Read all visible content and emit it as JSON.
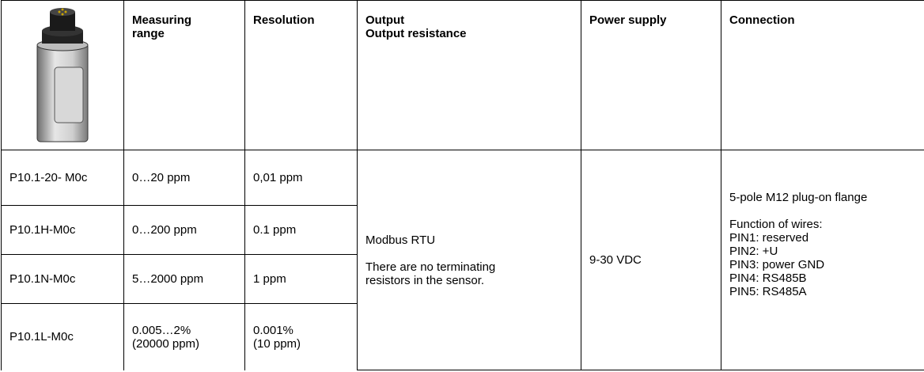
{
  "header": {
    "measuring_range": [
      "Measuring",
      "range"
    ],
    "resolution": "Resolution",
    "output": [
      "Output",
      "Output resistance"
    ],
    "power_supply": "Power supply",
    "connection": "Connection"
  },
  "rows": [
    {
      "model": "P10.1-20- M0c",
      "range": [
        "0…20 ppm"
      ],
      "resolution": [
        "0,01 ppm"
      ]
    },
    {
      "model": "P10.1H-M0c",
      "range": [
        "0…200 ppm"
      ],
      "resolution": [
        "0.1 ppm"
      ]
    },
    {
      "model": "P10.1N-M0c",
      "range": [
        "5…2000 ppm"
      ],
      "resolution": [
        "1 ppm"
      ]
    },
    {
      "model": "P10.1L-M0c",
      "range": [
        "0.005…2%",
        "(20000 ppm)"
      ],
      "resolution": [
        "0.001%",
        "(10 ppm)"
      ]
    }
  ],
  "output": [
    "Modbus RTU",
    "There are no terminating resistors in the sensor."
  ],
  "power_supply": "9-30 VDC",
  "connection": {
    "flange": "5-pole M12 plug-on flange",
    "wires": [
      "Function of wires:",
      "PIN1: reserved",
      "PIN2: +U",
      "PIN3: power GND",
      "PIN4: RS485B",
      "PIN5: RS485A"
    ]
  }
}
